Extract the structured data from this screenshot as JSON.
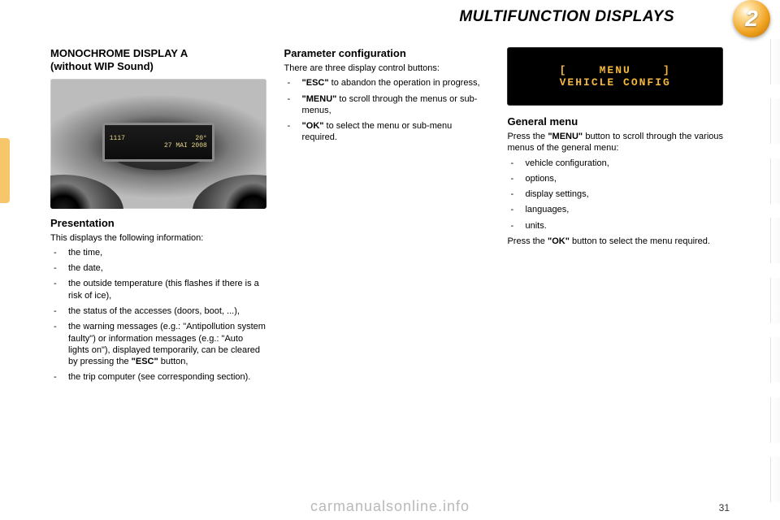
{
  "header": {
    "title": "MULTIFUNCTION DISPLAYS",
    "badge_number": "2",
    "badge_gradient": [
      "#ffe3a6",
      "#f0a21f",
      "#b86b00"
    ]
  },
  "left": {
    "title_line1": "MONOCHROME DISPLAY A",
    "title_line2": "(without WIP Sound)",
    "photo": {
      "screen_line1_left": "1117",
      "screen_line1_right": "20°",
      "screen_line2": "27 MAI 2008"
    },
    "presentation_heading": "Presentation",
    "presentation_intro": "This displays the following information:",
    "presentation_items": [
      "the time,",
      "the date,",
      "the outside temperature (this flashes if there is a risk of ice),",
      "the status of the accesses (doors, boot, ...),",
      "the warning messages (e.g.: \"Antipollution system faulty\") or information messages (e.g.: \"Auto lights on\"), displayed temporarily, can be cleared by pressing the <b>\"ESC\"</b> button,",
      "the trip computer (see corresponding section)."
    ]
  },
  "mid": {
    "heading": "Parameter configuration",
    "intro": "There are three display control buttons:",
    "items": [
      "<b>\"ESC\"</b> to abandon the operation in progress,",
      "<b>\"MENU\"</b> to scroll through the menus or sub-menus,",
      "<b>\"OK\"</b> to select the menu or sub-menu required."
    ]
  },
  "right": {
    "lcd": {
      "line1": "[    MENU    ]",
      "line2": "VEHICLE CONFIG",
      "text_color": "#f3b63f",
      "bg_color": "#000000"
    },
    "heading": "General menu",
    "intro": "Press the <b>\"MENU\"</b> button to scroll through the various menus of the general menu:",
    "items": [
      "vehicle configuration,",
      "options,",
      "display settings,",
      "languages,",
      "units."
    ],
    "outro": "Press the <b>\"OK\"</b> button to select the menu required."
  },
  "footer": {
    "watermark": "carmanualsonline.info",
    "page_number": "31"
  },
  "colors": {
    "side_tab": "#f7c66b",
    "text": "#000000",
    "watermark": "#b9b9b9"
  }
}
